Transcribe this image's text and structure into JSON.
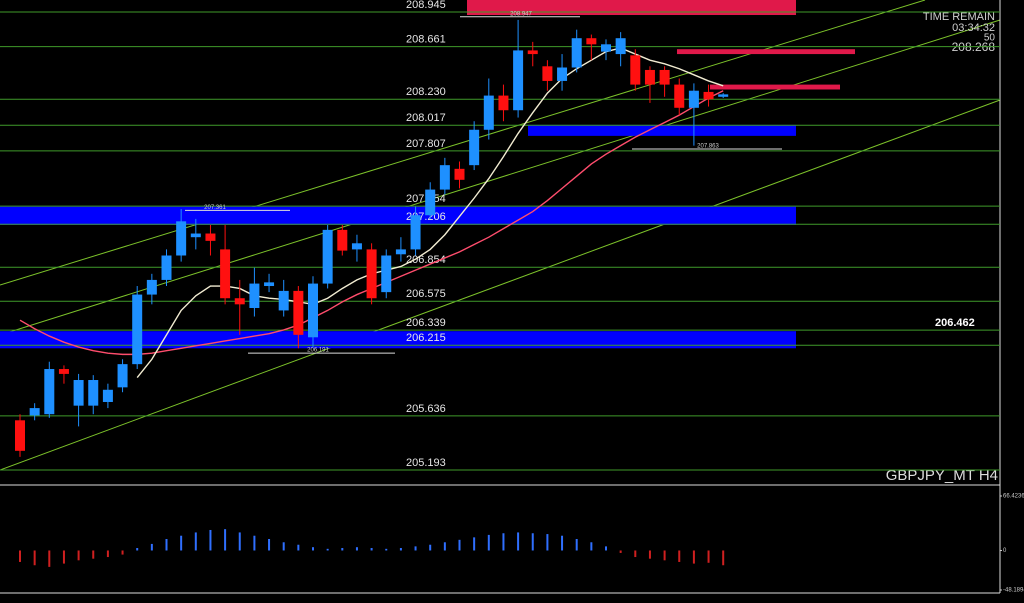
{
  "chart_data": [
    {
      "type": "candlestick",
      "symbol": "GBPJPY_MT H4",
      "ylim": [
        205.07,
        209.043
      ],
      "up_color": "#1e90ff",
      "down_color": "#ff1010",
      "open": [
        205.6,
        205.64,
        205.65,
        206.02,
        205.72,
        205.72,
        205.75,
        205.87,
        206.06,
        206.63,
        206.75,
        206.95,
        207.1,
        207.13,
        207.0,
        206.6,
        206.52,
        206.7,
        206.5,
        206.66,
        206.28,
        206.72,
        207.16,
        207.0,
        207.0,
        206.65,
        206.96,
        207.0,
        207.28,
        207.49,
        207.66,
        207.69,
        207.98,
        208.26,
        208.14,
        208.63,
        208.5,
        208.38,
        208.49,
        208.73,
        208.62,
        208.6,
        208.59,
        208.47,
        208.47,
        208.35,
        208.16,
        208.29,
        208.25
      ],
      "high": [
        205.65,
        205.74,
        206.08,
        206.05,
        205.98,
        205.97,
        205.9,
        206.1,
        206.7,
        206.8,
        207.0,
        207.33,
        207.25,
        207.2,
        207.2,
        206.75,
        206.85,
        206.8,
        206.75,
        206.7,
        206.78,
        207.2,
        207.2,
        207.12,
        207.05,
        207.0,
        207.1,
        207.35,
        207.55,
        207.75,
        207.72,
        208.05,
        208.4,
        208.35,
        208.88,
        208.7,
        208.55,
        208.6,
        208.8,
        208.76,
        208.72,
        208.78,
        208.64,
        208.5,
        208.5,
        208.4,
        208.36,
        208.35,
        208.28
      ],
      "low": [
        205.3,
        205.6,
        205.62,
        205.9,
        205.55,
        205.65,
        205.7,
        205.83,
        206.02,
        206.55,
        206.7,
        206.9,
        207.0,
        206.95,
        206.55,
        206.3,
        206.45,
        206.65,
        206.45,
        206.19,
        206.2,
        206.68,
        206.95,
        206.9,
        206.55,
        206.6,
        206.9,
        206.95,
        207.25,
        207.45,
        207.5,
        207.65,
        207.9,
        208.05,
        208.08,
        208.5,
        208.3,
        208.3,
        208.45,
        208.55,
        208.55,
        208.5,
        208.3,
        208.2,
        208.25,
        208.1,
        207.85,
        208.17,
        208.24
      ],
      "close": [
        205.35,
        205.7,
        206.02,
        205.98,
        205.93,
        205.93,
        205.85,
        206.06,
        206.63,
        206.75,
        206.95,
        207.23,
        207.13,
        207.07,
        206.6,
        206.55,
        206.72,
        206.73,
        206.66,
        206.3,
        206.72,
        207.16,
        206.99,
        207.05,
        206.6,
        206.95,
        207.0,
        207.28,
        207.49,
        207.69,
        207.57,
        207.98,
        208.26,
        208.14,
        208.63,
        208.6,
        208.38,
        208.49,
        208.73,
        208.68,
        208.68,
        208.73,
        208.35,
        208.35,
        208.35,
        208.16,
        208.3,
        208.23,
        208.27
      ],
      "series": [
        {
          "color": "#ff4d6d",
          "values": [
            206.42,
            206.35,
            206.29,
            206.24,
            206.2,
            206.17,
            206.15,
            206.14,
            206.14,
            206.15,
            206.17,
            206.19,
            206.21,
            206.23,
            206.25,
            206.27,
            206.29,
            206.31,
            206.34,
            206.38,
            206.44,
            206.5,
            206.57,
            206.63,
            206.68,
            206.73,
            206.78,
            206.83,
            206.88,
            206.93,
            206.98,
            207.04,
            207.1,
            207.17,
            207.24,
            207.31,
            207.4,
            207.5,
            207.6,
            207.7,
            207.78,
            207.85,
            207.92,
            207.98,
            208.04,
            208.1,
            208.17,
            208.24,
            208.3
          ]
        },
        {
          "color": "#f2ecd2",
          "values": [
            null,
            null,
            null,
            null,
            null,
            null,
            null,
            null,
            205.95,
            206.1,
            206.3,
            206.5,
            206.62,
            206.7,
            206.7,
            206.68,
            206.62,
            206.6,
            206.59,
            206.57,
            206.55,
            206.6,
            206.68,
            206.75,
            206.8,
            206.83,
            206.86,
            206.92,
            207.0,
            207.12,
            207.27,
            207.42,
            207.58,
            207.76,
            207.95,
            208.12,
            208.28,
            208.4,
            208.48,
            208.55,
            208.62,
            208.65,
            208.6,
            208.55,
            208.52,
            208.48,
            208.43,
            208.38,
            208.34
          ]
        }
      ],
      "levels": [
        208.945,
        208.661,
        {
          "value": 208.23,
          "label": "208.230"
        },
        208.017,
        207.807,
        207.354,
        207.206,
        206.854,
        206.575,
        206.339,
        206.215,
        205.636,
        205.193
      ],
      "level_color": "#3f9a2a",
      "zones": [
        {
          "top": 209.043,
          "bottom": 208.92,
          "color": "#e0194a"
        },
        {
          "top": 208.64,
          "bottom": 208.6,
          "color": "#e0194a"
        },
        {
          "top": 208.35,
          "bottom": 208.31,
          "color": "#e0194a"
        },
        {
          "top": 208.02,
          "bottom": 207.93,
          "color": "#0000ff"
        },
        {
          "top": 207.35,
          "bottom": 207.2,
          "color": "#0000ff"
        },
        {
          "top": 206.33,
          "bottom": 206.19,
          "color": "#0000ff"
        }
      ],
      "extremes": [
        208.947,
        207.361,
        206.191,
        207.863
      ],
      "alert_level": 206.462,
      "time_remain_label": "TIME REMAIN",
      "time_remain": "03:34:32",
      "spread": 50,
      "bid": 208.268
    },
    {
      "type": "bar",
      "ylim": [
        -48.1894,
        66.4236
      ],
      "yticks": [
        66.4236,
        0,
        -48.1894
      ],
      "up_color": "#2f6fff",
      "down_color": "#d02020",
      "values": [
        -14,
        -18,
        -20,
        -16,
        -12,
        -10,
        -8,
        -5,
        3,
        8,
        14,
        18,
        22,
        25,
        26,
        22,
        18,
        14,
        10,
        7,
        4,
        2,
        3,
        4,
        3,
        2,
        3,
        5,
        7,
        10,
        13,
        16,
        19,
        21,
        22,
        21,
        20,
        18,
        14,
        10,
        5,
        -3,
        -8,
        -10,
        -12,
        -14,
        -16,
        -15,
        -18
      ]
    }
  ]
}
